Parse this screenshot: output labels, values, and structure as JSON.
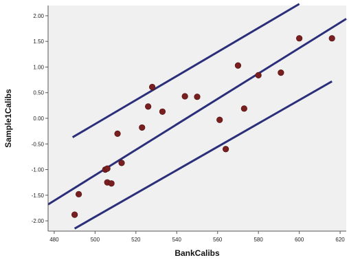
{
  "chart_data": {
    "type": "scatter",
    "title": "",
    "xlabel": "BankCalibs",
    "ylabel": "Sample1Calibs",
    "xlim": [
      477,
      623
    ],
    "ylim": [
      -2.2,
      2.2
    ],
    "xticks": [
      480,
      500,
      520,
      540,
      560,
      580,
      600,
      620
    ],
    "yticks": [
      2.0,
      1.5,
      1.0,
      0.5,
      0.0,
      -0.5,
      -1.0,
      -1.5,
      -2.0
    ],
    "xtick_labels": [
      "480",
      "500",
      "520",
      "540",
      "560",
      "580",
      "600",
      "620"
    ],
    "ytick_labels": [
      "2.00",
      "1.50",
      "1.00",
      "0.50",
      "0.00",
      "-0.50",
      "-1.00",
      "-1.50",
      "-2.00"
    ],
    "grid": false,
    "background_color": "#f0f0f0",
    "point_color": "#7a1f1f",
    "line_color": "#2b2f7a",
    "points": [
      {
        "x": 490,
        "y": -1.88
      },
      {
        "x": 492,
        "y": -1.48
      },
      {
        "x": 505,
        "y": -1.0
      },
      {
        "x": 506,
        "y": -0.98
      },
      {
        "x": 506,
        "y": -1.25
      },
      {
        "x": 508,
        "y": -1.27
      },
      {
        "x": 511,
        "y": -0.3
      },
      {
        "x": 513,
        "y": -0.87
      },
      {
        "x": 523,
        "y": -0.18
      },
      {
        "x": 526,
        "y": 0.23
      },
      {
        "x": 528,
        "y": 0.61
      },
      {
        "x": 533,
        "y": 0.13
      },
      {
        "x": 544,
        "y": 0.43
      },
      {
        "x": 550,
        "y": 0.42
      },
      {
        "x": 561,
        "y": -0.03
      },
      {
        "x": 564,
        "y": -0.6
      },
      {
        "x": 570,
        "y": 1.03
      },
      {
        "x": 573,
        "y": 0.19
      },
      {
        "x": 580,
        "y": 0.84
      },
      {
        "x": 591,
        "y": 0.89
      },
      {
        "x": 600,
        "y": 1.56
      },
      {
        "x": 616,
        "y": 1.56
      }
    ],
    "lines": [
      {
        "name": "",
        "x": [
          477,
          623
        ],
        "y": [
          -1.68,
          1.94
        ]
      },
      {
        "name": "",
        "x": [
          489,
          600
        ],
        "y": [
          -0.37,
          2.23
        ]
      },
      {
        "name": "",
        "x": [
          490,
          616
        ],
        "y": [
          -2.15,
          0.72
        ]
      }
    ]
  }
}
